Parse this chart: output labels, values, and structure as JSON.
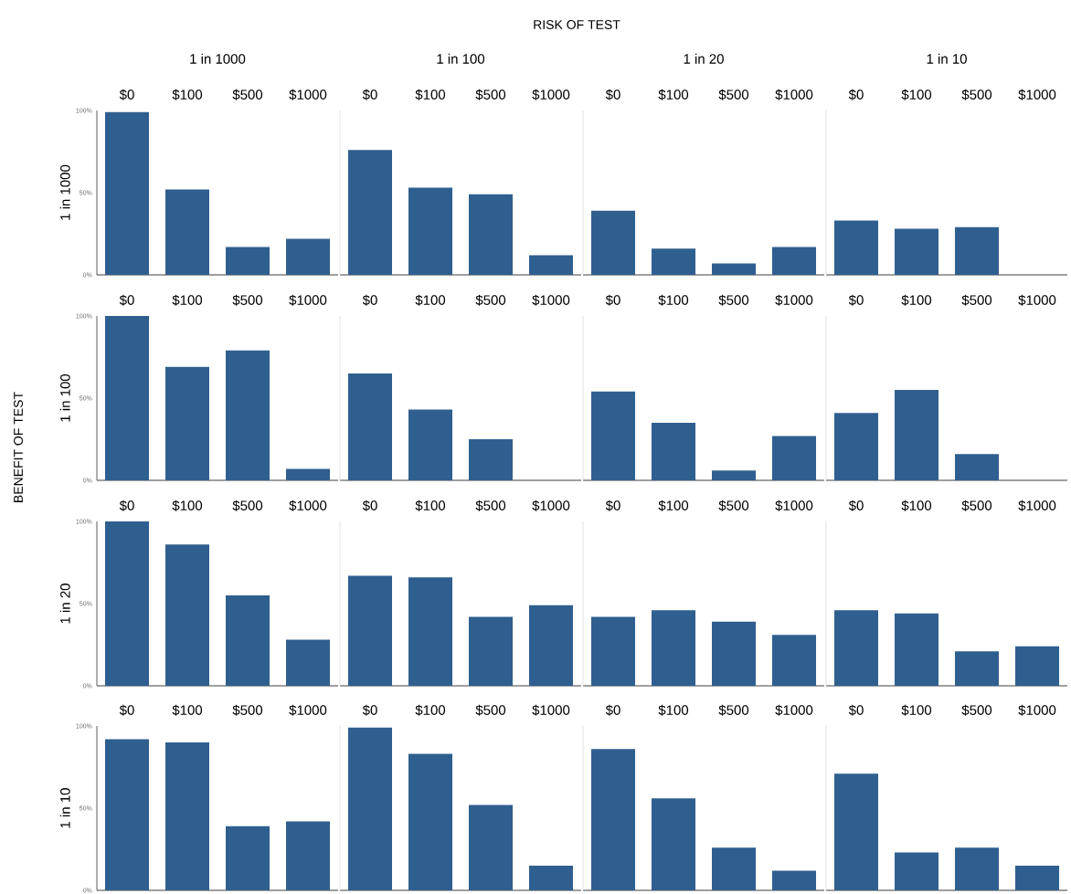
{
  "chart_data": [
    {
      "type": "bar",
      "title": "1 in 1000",
      "ylabel": "1 in 1000",
      "categories": [
        "$0",
        "$100",
        "$500",
        "$1000"
      ],
      "values": [
        99,
        52,
        17,
        22
      ],
      "color": "#2f5f8f",
      "ylim": [
        0,
        100
      ],
      "yticks": [
        {
          "value": 0,
          "label": "0%"
        },
        {
          "value": 50,
          "label": "50%"
        },
        {
          "value": 100,
          "label": "100%"
        }
      ],
      "annotations": [
        "RISK OF TEST",
        "BENEFIT OF TEST"
      ]
    },
    {
      "type": "bar",
      "title": "1 in 100",
      "categories": [
        "$0",
        "$100",
        "$500",
        "$1000"
      ],
      "values": [
        76,
        53,
        49,
        12
      ],
      "color": "#2f5f8f",
      "ylim": [
        0,
        100
      ],
      "tick_labels": "x"
    },
    {
      "type": "bar",
      "title": "1 in 20",
      "categories": [
        "$0",
        "$100",
        "$500",
        "$1000"
      ],
      "values": [
        39,
        16,
        7,
        17
      ],
      "color": "#2f5f8f",
      "ylim": [
        0,
        100
      ],
      "tick_labels": "x"
    },
    {
      "type": "bar",
      "title": "1 in 10",
      "categories": [
        "$0",
        "$100",
        "$500",
        "$1000"
      ],
      "values": [
        33,
        28,
        29,
        0
      ],
      "color": "#2f5f8f",
      "ylim": [
        0,
        100
      ],
      "tick_labels": "x"
    },
    {
      "type": "bar",
      "ylabel": "1 in 100",
      "categories": [
        "$0",
        "$100",
        "$500",
        "$1000"
      ],
      "values": [
        100,
        69,
        79,
        7
      ],
      "color": "#2f5f8f",
      "ylim": [
        0,
        100
      ],
      "yticks": [
        {
          "value": 0,
          "label": "0%"
        },
        {
          "value": 50,
          "label": "50%"
        },
        {
          "value": 100,
          "label": "100%"
        }
      ]
    },
    {
      "type": "bar",
      "categories": [
        "$0",
        "$100",
        "$500",
        "$1000"
      ],
      "values": [
        65,
        43,
        25,
        0
      ],
      "color": "#2f5f8f",
      "ylim": [
        0,
        100
      ],
      "tick_labels": "x"
    },
    {
      "type": "bar",
      "categories": [
        "$0",
        "$100",
        "$500",
        "$1000"
      ],
      "values": [
        54,
        35,
        6,
        27
      ],
      "color": "#2f5f8f",
      "ylim": [
        0,
        100
      ],
      "tick_labels": "x"
    },
    {
      "type": "bar",
      "categories": [
        "$0",
        "$100",
        "$500",
        "$1000"
      ],
      "values": [
        41,
        55,
        16,
        0
      ],
      "color": "#2f5f8f",
      "ylim": [
        0,
        100
      ],
      "tick_labels": "x"
    },
    {
      "type": "bar",
      "ylabel": "1 in 20",
      "categories": [
        "$0",
        "$100",
        "$500",
        "$1000"
      ],
      "values": [
        100,
        86,
        55,
        28
      ],
      "color": "#2f5f8f",
      "ylim": [
        0,
        100
      ],
      "yticks": [
        {
          "value": 0,
          "label": "0%"
        },
        {
          "value": 50,
          "label": "50%"
        },
        {
          "value": 100,
          "label": "100%"
        }
      ]
    },
    {
      "type": "bar",
      "categories": [
        "$0",
        "$100",
        "$500",
        "$1000"
      ],
      "values": [
        67,
        66,
        42,
        49
      ],
      "color": "#2f5f8f",
      "ylim": [
        0,
        100
      ],
      "tick_labels": "x"
    },
    {
      "type": "bar",
      "categories": [
        "$0",
        "$100",
        "$500",
        "$1000"
      ],
      "values": [
        42,
        46,
        39,
        31
      ],
      "color": "#2f5f8f",
      "ylim": [
        0,
        100
      ],
      "tick_labels": "x"
    },
    {
      "type": "bar",
      "categories": [
        "$0",
        "$100",
        "$500",
        "$1000"
      ],
      "values": [
        46,
        44,
        21,
        24
      ],
      "color": "#2f5f8f",
      "ylim": [
        0,
        100
      ],
      "tick_labels": "x"
    },
    {
      "type": "bar",
      "ylabel": "1 in 10",
      "categories": [
        "$0",
        "$100",
        "$500",
        "$1000"
      ],
      "values": [
        92,
        90,
        39,
        42
      ],
      "color": "#2f5f8f",
      "ylim": [
        0,
        100
      ],
      "yticks": [
        {
          "value": 0,
          "label": "0%"
        },
        {
          "value": 50,
          "label": "50%"
        },
        {
          "value": 100,
          "label": "100%"
        }
      ]
    },
    {
      "type": "bar",
      "categories": [
        "$0",
        "$100",
        "$500",
        "$1000"
      ],
      "values": [
        99,
        83,
        52,
        15
      ],
      "color": "#2f5f8f",
      "ylim": [
        0,
        100
      ],
      "tick_labels": "x"
    },
    {
      "type": "bar",
      "categories": [
        "$0",
        "$100",
        "$500",
        "$1000"
      ],
      "values": [
        86,
        56,
        26,
        12
      ],
      "color": "#2f5f8f",
      "ylim": [
        0,
        100
      ],
      "tick_labels": "x"
    },
    {
      "type": "bar",
      "categories": [
        "$0",
        "$100",
        "$500",
        "$1000"
      ],
      "values": [
        71,
        23,
        26,
        15
      ],
      "color": "#2f5f8f",
      "ylim": [
        0,
        100
      ],
      "tick_labels": "x"
    }
  ]
}
